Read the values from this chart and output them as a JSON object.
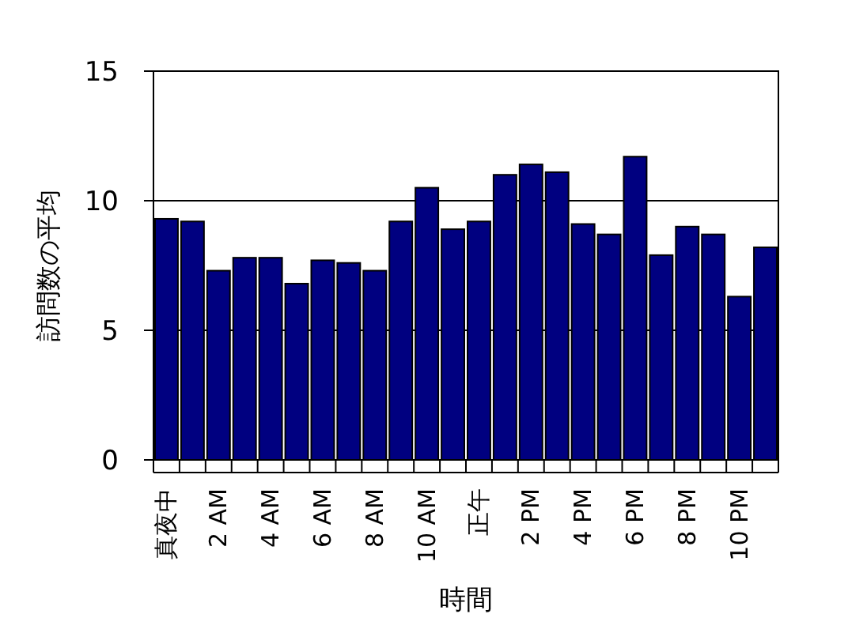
{
  "chart_data": {
    "type": "bar",
    "xlabel": "時間",
    "ylabel": "訪問数の平均",
    "categories": [
      "真夜中",
      null,
      "2 AM",
      null,
      "4 AM",
      null,
      "6 AM",
      null,
      "8 AM",
      null,
      "10 AM",
      null,
      "正午",
      null,
      "2 PM",
      null,
      "4 PM",
      null,
      "6 PM",
      null,
      "8 PM",
      null,
      "10 PM",
      null
    ],
    "series": [
      {
        "color": "#000080",
        "values": [
          9.3,
          9.2,
          7.3,
          7.8,
          7.8,
          6.8,
          7.7,
          7.6,
          7.3,
          9.2,
          10.5,
          8.9,
          9.2,
          11.0,
          11.4,
          11.1,
          9.1,
          8.7,
          11.7,
          7.9,
          9.0,
          8.7,
          6.3,
          8.2
        ]
      }
    ],
    "ylim": [
      0,
      15
    ],
    "yticks": [
      0,
      5,
      10,
      15
    ],
    "grid": "y"
  }
}
